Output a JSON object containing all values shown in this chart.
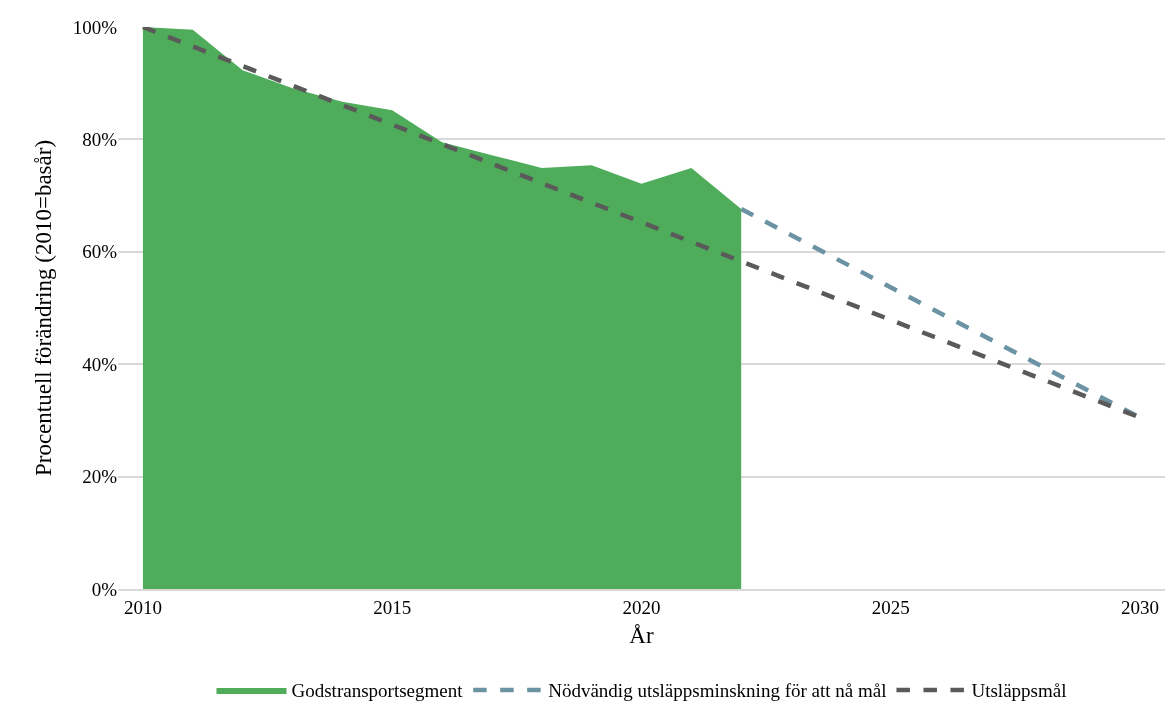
{
  "chart_data": {
    "type": "area",
    "xlabel": "År",
    "ylabel": "Procentuell förändring (2010=basår)",
    "xlim": [
      2009.5,
      2030.5
    ],
    "xticks": [
      2010,
      2015,
      2020,
      2025,
      2030
    ],
    "ylim": [
      0,
      100
    ],
    "yticks": [
      {
        "value": 0,
        "label": "0%"
      },
      {
        "value": 20,
        "label": "20%"
      },
      {
        "value": 40,
        "label": "40%"
      },
      {
        "value": 60,
        "label": "60%"
      },
      {
        "value": 80,
        "label": "80%"
      },
      {
        "value": 100,
        "label": "100%"
      }
    ],
    "grid": "y",
    "legend": "bottom",
    "series": [
      {
        "name": "Godstransportsegment",
        "color": "#4eac5b",
        "x": [
          2010,
          2011,
          2012,
          2013,
          2014,
          2015,
          2016,
          2017,
          2018,
          2019,
          2020,
          2021,
          2022
        ],
        "values": [
          100,
          99.5,
          92.3,
          89.1,
          86.7,
          85.2,
          79.5,
          77.2,
          74.9,
          75.4,
          72.1,
          74.9,
          67.6
        ]
      },
      {
        "name": "Nödvändig utsläppsminskning för att nå mål",
        "type": "line",
        "color": "#6b93a3",
        "line_style": "dashed",
        "x": [
          2022,
          2030
        ],
        "values": [
          67.6,
          30.5
        ]
      },
      {
        "name": "Utsläppsmål",
        "type": "line",
        "color": "#5a5a5a",
        "line_style": "dashed",
        "x": [
          2010,
          2030
        ],
        "values": [
          100,
          30.5
        ]
      }
    ]
  }
}
